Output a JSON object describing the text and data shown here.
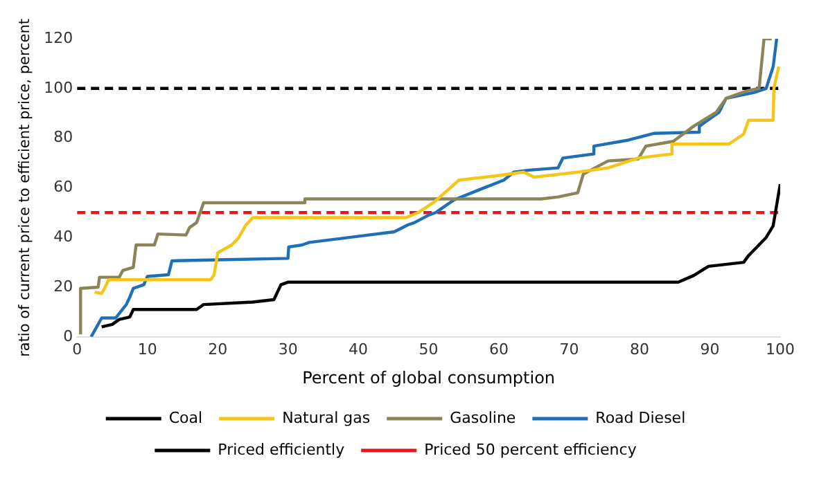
{
  "chart_data": {
    "type": "line",
    "xlabel": "Percent of global consumption",
    "ylabel": "ratio of current price to efficient price, percent",
    "xlim": [
      0,
      100
    ],
    "ylim": [
      0,
      120
    ],
    "xticks": [
      0,
      10,
      20,
      30,
      40,
      50,
      60,
      70,
      80,
      90,
      100
    ],
    "yticks": [
      0,
      20,
      40,
      60,
      80,
      100,
      120
    ],
    "grid": false,
    "legend": "bottom",
    "marker": "none",
    "series": [
      {
        "name": "Coal",
        "color": "#000000",
        "x": [
          3.5,
          5,
          6,
          7.5,
          8,
          17,
          18,
          25,
          28,
          29,
          30,
          50,
          85.5,
          87.7,
          89.8,
          94.8,
          95.5,
          98,
          99,
          100
        ],
        "values": [
          4,
          5,
          7,
          8,
          11,
          11,
          13,
          14,
          15,
          21,
          22,
          22,
          22,
          24.7,
          28.4,
          30,
          32.7,
          40,
          44.7,
          61.5
        ]
      },
      {
        "name": "Natural gas",
        "color": "#f5c518",
        "x": [
          2.5,
          3.5,
          4,
          4.5,
          19,
          19.5,
          20,
          22,
          23,
          24,
          25,
          46.8,
          48.5,
          50.8,
          54.3,
          59.3,
          63.5,
          65,
          71.2,
          75.5,
          79.8,
          84.5,
          84.6,
          92.7,
          94.8,
          95.5,
          99,
          99.1,
          99.8
        ],
        "values": [
          18,
          17.5,
          20,
          23,
          23,
          25,
          33.8,
          37,
          40,
          45,
          48,
          48,
          50,
          54.3,
          63.1,
          64.7,
          66.3,
          64.3,
          66.3,
          68,
          72,
          73.6,
          77.6,
          77.6,
          81.6,
          87.2,
          87.2,
          100,
          108.8
        ]
      },
      {
        "name": "Gasoline",
        "color": "#8c8459",
        "x": [
          0.5,
          0.5,
          3,
          3.2,
          6,
          6.5,
          8,
          8.4,
          11,
          11.5,
          15.5,
          16,
          17,
          18,
          32.3,
          32.4,
          66,
          68.4,
          71.2,
          72,
          75.5,
          79.8,
          80.9,
          84.8,
          87.7,
          90.9,
          92.3,
          95.5,
          97,
          97.7,
          98.8
        ],
        "values": [
          1,
          19.5,
          20,
          24,
          24,
          26.7,
          28,
          37,
          37,
          41.4,
          41,
          44,
          46,
          54,
          54,
          55.5,
          55.5,
          56.3,
          58,
          65.5,
          70.8,
          71.6,
          76.8,
          78.7,
          84.8,
          90.4,
          96,
          99.2,
          100,
          120,
          120
        ]
      },
      {
        "name": "Road Diesel",
        "color": "#1f6fb8",
        "x": [
          2,
          3.5,
          5.5,
          7,
          7.5,
          8,
          9.5,
          10,
          13,
          13.5,
          20,
          30,
          30.1,
          32,
          33,
          45.1,
          47,
          48,
          50,
          51,
          52,
          53.6,
          57.1,
          60.7,
          62.1,
          64.3,
          68.4,
          69.1,
          73.4,
          73.5,
          78.4,
          82,
          88.4,
          88.5,
          91.3,
          92.3,
          96.3,
          98,
          99,
          99.5
        ],
        "values": [
          0,
          7.6,
          7.6,
          13,
          16,
          19.5,
          21,
          24.3,
          25,
          30.6,
          31,
          31.6,
          36.2,
          37,
          38,
          42.3,
          45,
          46,
          49,
          50,
          52,
          55.1,
          59.1,
          63.1,
          66.3,
          67.1,
          68,
          72,
          73.6,
          76.8,
          79.2,
          81.9,
          82.4,
          84.8,
          90.4,
          96,
          98.4,
          100,
          108.8,
          120
        ]
      },
      {
        "name": "Priced efficiently",
        "color": "#000000",
        "line_style": "dashed",
        "x": [
          0,
          100
        ],
        "values": [
          100,
          100
        ]
      },
      {
        "name": "Priced 50 percent efficiency",
        "color": "#e8141b",
        "line_style": "dashed",
        "x": [
          0,
          100
        ],
        "values": [
          50,
          50
        ]
      }
    ]
  }
}
